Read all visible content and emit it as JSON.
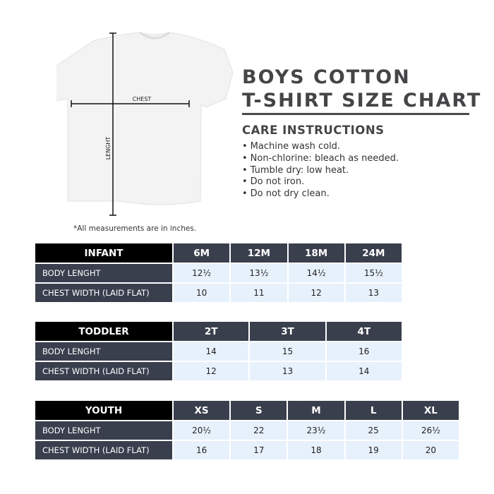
{
  "diagram": {
    "chest_label": "CHEST",
    "length_label": "LENGHT"
  },
  "title": {
    "line1": "BOYS COTTON",
    "line2": "T-SHIRT SIZE CHART"
  },
  "care": {
    "heading": "CARE INSTRUCTIONS",
    "items": [
      "Machine wash cold.",
      "Non-chlorine: bleach as needed.",
      "Tumble dry: low heat.",
      "Do not iron.",
      "Do not dry clean."
    ]
  },
  "note": "*All measurements are in inches.",
  "colors": {
    "category_header": "#000000",
    "dark_cells": "#3a3f4e",
    "value_cells": "#e7f1fc",
    "title": "#454548"
  },
  "tables": [
    {
      "category": "INFANT",
      "sizes": [
        "6M",
        "12M",
        "18M",
        "24M"
      ],
      "rows": [
        {
          "label": "BODY LENGHT",
          "values": [
            "12½",
            "13½",
            "14½",
            "15½"
          ]
        },
        {
          "label": "CHEST WIDTH (LAID FLAT)",
          "values": [
            "10",
            "11",
            "12",
            "13"
          ]
        }
      ]
    },
    {
      "category": "TODDLER",
      "sizes": [
        "2T",
        "3T",
        "4T"
      ],
      "rows": [
        {
          "label": "BODY LENGHT",
          "values": [
            "14",
            "15",
            "16"
          ]
        },
        {
          "label": "CHEST WIDTH (LAID FLAT)",
          "values": [
            "12",
            "13",
            "14"
          ]
        }
      ]
    },
    {
      "category": "YOUTH",
      "sizes": [
        "XS",
        "S",
        "M",
        "L",
        "XL"
      ],
      "rows": [
        {
          "label": "BODY LENGHT",
          "values": [
            "20½",
            "22",
            "23½",
            "25",
            "26½"
          ]
        },
        {
          "label": "CHEST WIDTH (LAID FLAT)",
          "values": [
            "16",
            "17",
            "18",
            "19",
            "20"
          ]
        }
      ]
    }
  ]
}
